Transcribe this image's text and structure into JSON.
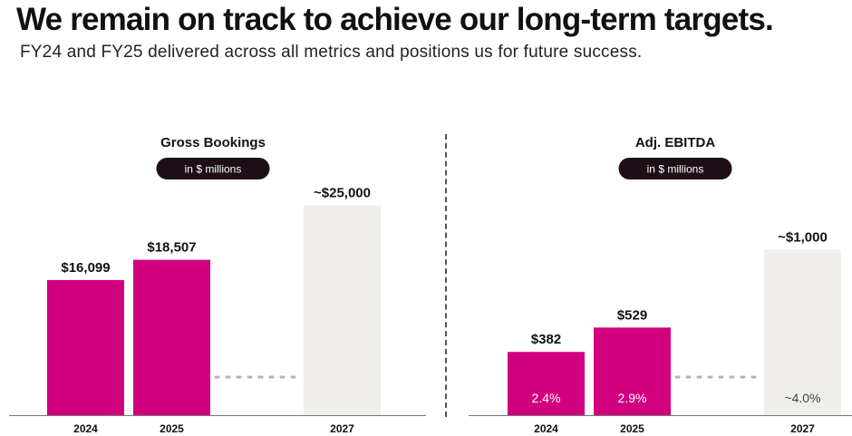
{
  "header": {
    "title": "We remain on track to achieve our long-term targets.",
    "subtitle": "FY24 and FY25 delivered across all metrics and positions us for future success."
  },
  "colors": {
    "actual": "#d1007f",
    "target": "#efeeea",
    "pill": "#1e0f17",
    "connector": "#b3b3b3",
    "axis": "#777777"
  },
  "chart_data": [
    {
      "type": "bar",
      "title": "Gross Bookings",
      "unit_label": "in $ millions",
      "categories": [
        "2024",
        "2025",
        "2027"
      ],
      "values": [
        16099,
        18507,
        25000
      ],
      "data_labels": [
        "$16,099",
        "$18,507",
        "~$25,000"
      ],
      "inner_labels": [
        "",
        "",
        ""
      ],
      "bar_kinds": [
        "actual",
        "actual",
        "target"
      ],
      "ylim": [
        0,
        36500
      ],
      "grid": false,
      "connector": "dotted line from 2025 to 2027"
    },
    {
      "type": "bar",
      "title": "Adj. EBITDA",
      "unit_label": "in $ millions",
      "categories": [
        "2024",
        "2025",
        "2027"
      ],
      "values": [
        382,
        529,
        1000
      ],
      "data_labels": [
        "$382",
        "$529",
        "~$1,000"
      ],
      "inner_labels": [
        "2.4%",
        "2.9%",
        "~4.0%"
      ],
      "bar_kinds": [
        "actual",
        "actual",
        "target"
      ],
      "ylim": [
        0,
        1850
      ],
      "grid": false,
      "connector": "dotted line from 2025 to 2027"
    }
  ]
}
